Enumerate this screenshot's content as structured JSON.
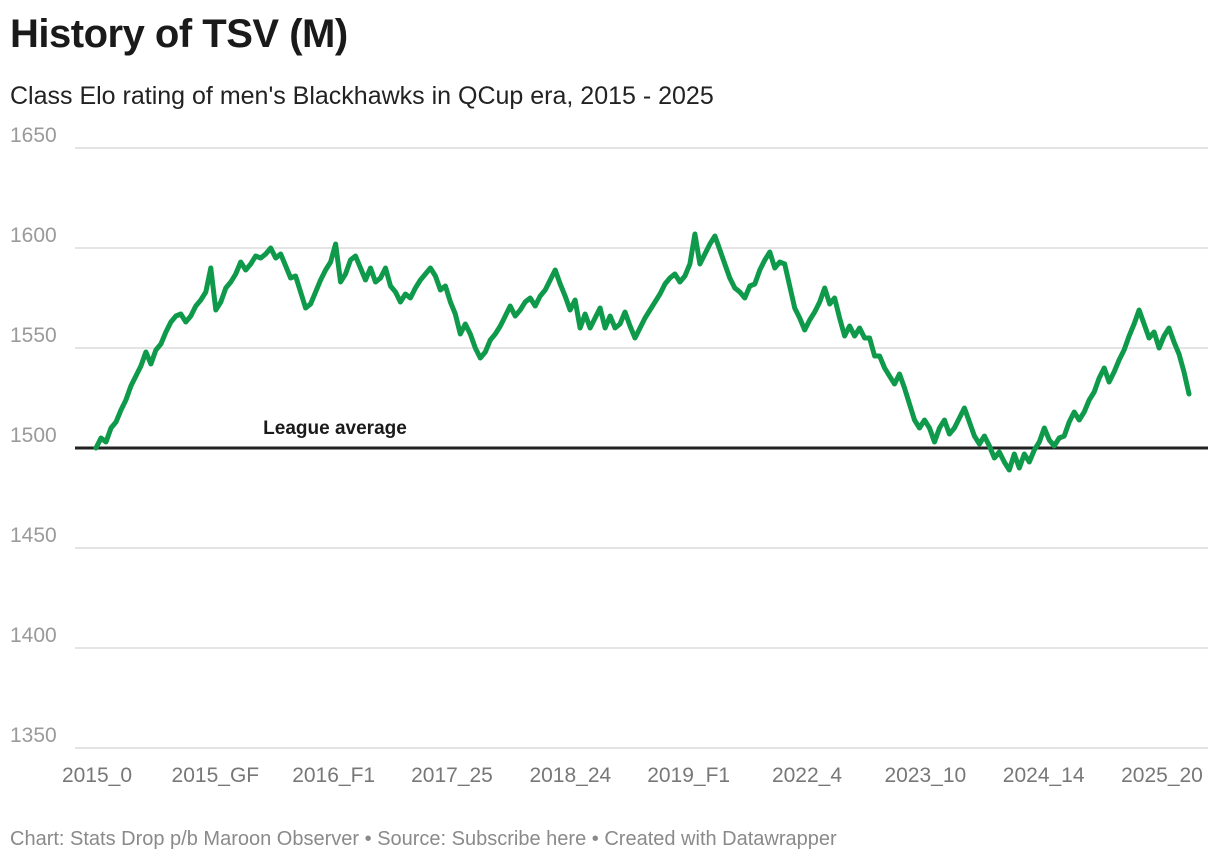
{
  "chart_data": {
    "type": "line",
    "title": "History of TSV (M)",
    "subtitle": "Class Elo rating of men's Blackhawks in QCup era, 2015 - 2025",
    "ylim": [
      1350,
      1650
    ],
    "yticks": [
      1350,
      1400,
      1450,
      1500,
      1550,
      1600,
      1650
    ],
    "xticks": [
      "2015_0",
      "2015_GF",
      "2016_F1",
      "2017_25",
      "2018_24",
      "2019_F1",
      "2022_4",
      "2023_10",
      "2024_14",
      "2025_20"
    ],
    "reference_line": {
      "value": 1500,
      "label": "League average"
    },
    "series": [
      {
        "name": "TSV (M)",
        "color": "#0e9a4a",
        "values": [
          1500,
          1505,
          1503,
          1510,
          1513,
          1519,
          1524,
          1531,
          1536,
          1541,
          1548,
          1542,
          1549,
          1552,
          1558,
          1563,
          1566,
          1567,
          1563,
          1566,
          1571,
          1574,
          1578,
          1590,
          1569,
          1573,
          1580,
          1583,
          1587,
          1593,
          1589,
          1592,
          1596,
          1595,
          1597,
          1600,
          1595,
          1597,
          1591,
          1585,
          1586,
          1578,
          1570,
          1572,
          1578,
          1584,
          1589,
          1593,
          1602,
          1583,
          1587,
          1594,
          1596,
          1590,
          1584,
          1590,
          1583,
          1585,
          1590,
          1581,
          1578,
          1573,
          1577,
          1575,
          1580,
          1584,
          1587,
          1590,
          1586,
          1579,
          1581,
          1573,
          1567,
          1557,
          1562,
          1557,
          1550,
          1545,
          1548,
          1554,
          1557,
          1561,
          1566,
          1571,
          1566,
          1569,
          1573,
          1575,
          1571,
          1576,
          1579,
          1584,
          1589,
          1582,
          1576,
          1569,
          1574,
          1560,
          1567,
          1560,
          1565,
          1570,
          1560,
          1566,
          1560,
          1562,
          1568,
          1561,
          1555,
          1560,
          1565,
          1569,
          1573,
          1577,
          1582,
          1585,
          1587,
          1583,
          1586,
          1592,
          1607,
          1592,
          1597,
          1602,
          1606,
          1599,
          1592,
          1585,
          1580,
          1578,
          1575,
          1581,
          1582,
          1589,
          1594,
          1598,
          1590,
          1593,
          1592,
          1581,
          1570,
          1565,
          1559,
          1564,
          1568,
          1573,
          1580,
          1572,
          1575,
          1565,
          1556,
          1561,
          1556,
          1560,
          1555,
          1555,
          1546,
          1546,
          1540,
          1536,
          1532,
          1537,
          1530,
          1522,
          1514,
          1510,
          1514,
          1510,
          1503,
          1510,
          1514,
          1507,
          1510,
          1515,
          1520,
          1513,
          1506,
          1502,
          1506,
          1501,
          1495,
          1498,
          1493,
          1489,
          1497,
          1490,
          1497,
          1493,
          1499,
          1503,
          1510,
          1504,
          1501,
          1505,
          1506,
          1513,
          1518,
          1514,
          1518,
          1524,
          1528,
          1535,
          1540,
          1533,
          1538,
          1544,
          1549,
          1556,
          1562,
          1569,
          1562,
          1555,
          1558,
          1550,
          1556,
          1560,
          1553,
          1547,
          1538,
          1527
        ]
      }
    ]
  },
  "footer": {
    "chart_credit": "Chart: Stats Drop p/b Maroon Observer",
    "sep1": "•",
    "source": "Source: Subscribe here",
    "sep2": "•",
    "created": "Created with Datawrapper"
  }
}
